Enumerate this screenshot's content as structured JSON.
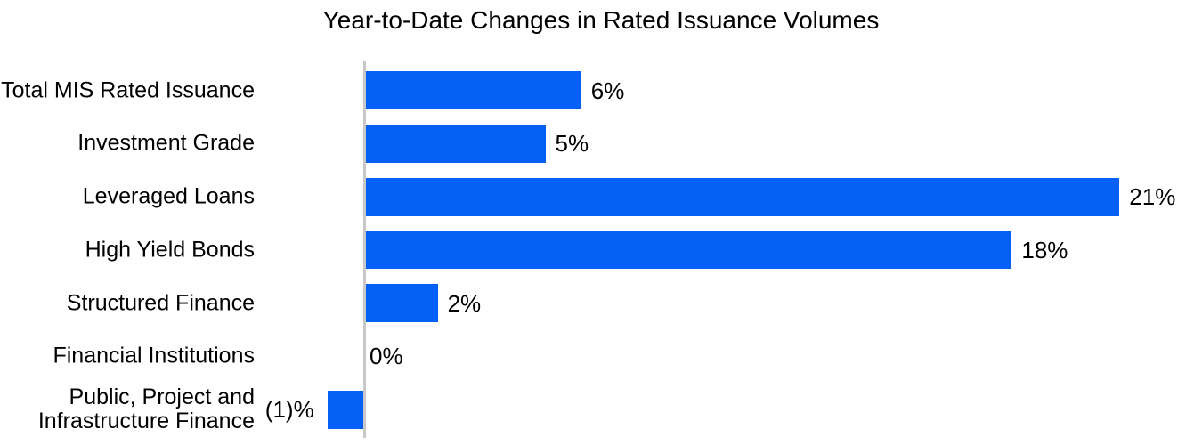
{
  "chart_data": {
    "type": "bar",
    "orientation": "horizontal",
    "title": "Year-to-Date Changes in Rated Issuance Volumes",
    "categories": [
      "Total MIS Rated Issuance",
      "Investment Grade",
      "Leveraged Loans",
      "High Yield Bonds",
      "Structured Finance",
      "Financial Institutions",
      "Public, Project and\nInfrastructure Finance"
    ],
    "values": [
      6,
      5,
      21,
      18,
      2,
      0,
      -1
    ],
    "value_labels": [
      "6%",
      "5%",
      "21%",
      "18%",
      "2%",
      "0%",
      "(1)%"
    ],
    "unit": "%",
    "xlim": [
      -2,
      23
    ],
    "grid": false,
    "legend": false,
    "bar_color": "#0561f5",
    "axis_color": "#c8c8c8",
    "text_color": "#000000",
    "background": "#ffffff"
  }
}
